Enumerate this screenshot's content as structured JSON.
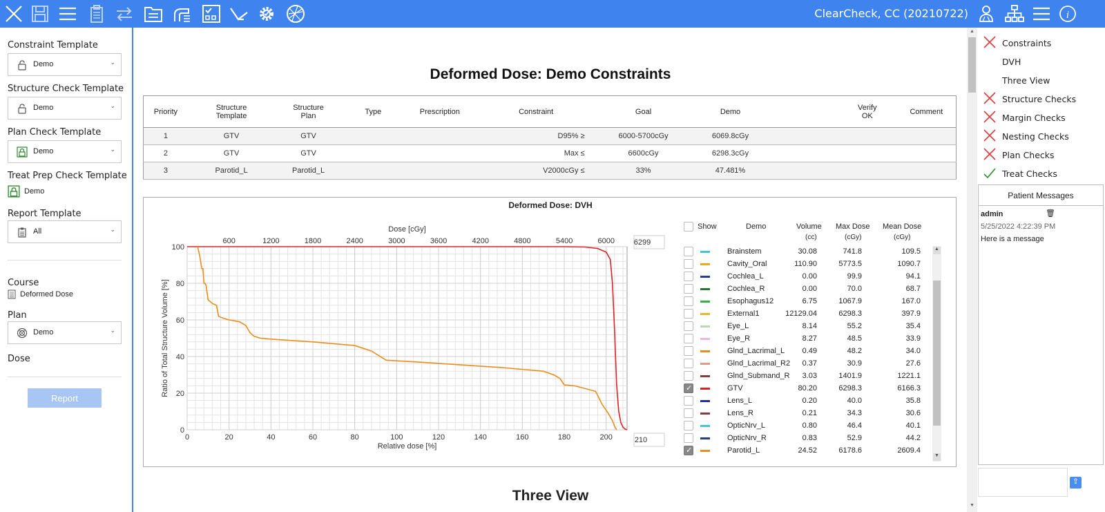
{
  "toolbar": {
    "title": "ClearCheck, CC (20210722)",
    "left_icons": [
      "close-icon",
      "save-icon",
      "menu-icon",
      "clipboard-icon",
      "swap-icon",
      "folder-icon",
      "pc-icon",
      "checklist-icon",
      "branch-icon",
      "gear-icon",
      "planner-icon"
    ],
    "right_icons": [
      "users-icon",
      "hierarchy-icon",
      "menu-icon",
      "info-icon"
    ],
    "accent": "#3f83ee"
  },
  "left_panel": {
    "constraint_template": {
      "label": "Constraint Template",
      "value": "Demo"
    },
    "structure_check_template": {
      "label": "Structure Check Template",
      "value": "Demo"
    },
    "plan_check_template": {
      "label": "Plan Check Template",
      "value": "Demo"
    },
    "treat_prep_check_template": {
      "label": "Treat Prep Check Template",
      "value": "Demo"
    },
    "report_template": {
      "label": "Report Template",
      "value": "All"
    },
    "course": {
      "label": "Course",
      "value": "Deformed Dose"
    },
    "plan": {
      "label": "Plan",
      "value": "Demo"
    },
    "dose": {
      "label": "Dose"
    },
    "report_button": "Report"
  },
  "main": {
    "title": "Deformed Dose:  Demo Constraints",
    "table": {
      "headers": [
        "Priority",
        "Structure\nTemplate",
        "Structure\nPlan",
        "Type",
        "Prescription",
        "Constraint",
        "Goal",
        "Demo",
        "",
        "Verify\nOK",
        "Comment"
      ],
      "rows": [
        {
          "priority": "1",
          "tmpl": "GTV",
          "plan": "GTV",
          "type": "",
          "rx": "",
          "constraint": "D95% ≥",
          "goal": "6000-5700cGy",
          "demo": "6069.8cGy",
          "status": "pass"
        },
        {
          "priority": "2",
          "tmpl": "GTV",
          "plan": "GTV",
          "type": "",
          "rx": "",
          "constraint": "Max ≤",
          "goal": "6600cGy",
          "demo": "6298.3cGy",
          "status": "pass"
        },
        {
          "priority": "3",
          "tmpl": "Parotid_L",
          "plan": "Parotid_L",
          "type": "",
          "rx": "",
          "constraint": "V2000cGy ≤",
          "goal": "33%",
          "demo": "47.481%",
          "status": "fail"
        }
      ]
    },
    "dvh_title": "Deformed Dose: DVH",
    "three_view_title": "Three View",
    "legend": {
      "show_label": "Show",
      "demo_label": "Demo",
      "volume_label": "Volume",
      "volume_unit": "(cc)",
      "max_label": "Max Dose",
      "max_unit": "(cGy)",
      "mean_label": "Mean Dose",
      "mean_unit": "(cGy)",
      "rows": [
        {
          "name": "Brainstem",
          "color": "#3fc4e8",
          "vol": "30.08",
          "max": "741.8",
          "mean": "109.5",
          "on": false
        },
        {
          "name": "Cavity_Oral",
          "color": "#f0a81a",
          "vol": "110.90",
          "max": "5773.5",
          "mean": "1090.7",
          "on": false
        },
        {
          "name": "Cochlea_L",
          "color": "#1f3f9a",
          "vol": "0.00",
          "max": "99.9",
          "mean": "94.1",
          "on": false
        },
        {
          "name": "Cochlea_R",
          "color": "#1d7a2e",
          "vol": "0.00",
          "max": "70.0",
          "mean": "68.7",
          "on": false
        },
        {
          "name": "Esophagus12",
          "color": "#33b43a",
          "vol": "6.75",
          "max": "1067.9",
          "mean": "167.0",
          "on": false
        },
        {
          "name": "External1",
          "color": "#f3b22a",
          "vol": "12129.04",
          "max": "6298.3",
          "mean": "397.9",
          "on": false
        },
        {
          "name": "Eye_L",
          "color": "#b9d8b5",
          "vol": "8.14",
          "max": "55.2",
          "mean": "35.4",
          "on": false
        },
        {
          "name": "Eye_R",
          "color": "#f0b4ec",
          "vol": "8.27",
          "max": "48.5",
          "mean": "33.9",
          "on": false
        },
        {
          "name": "Glnd_Lacrimal_L",
          "color": "#e88a1d",
          "vol": "0.49",
          "max": "48.2",
          "mean": "34.0",
          "on": false
        },
        {
          "name": "Glnd_Lacrimal_R2",
          "color": "#e49a8a",
          "vol": "0.37",
          "max": "30.9",
          "mean": "27.6",
          "on": false
        },
        {
          "name": "Glnd_Submand_R",
          "color": "#8b3a3a",
          "vol": "3.03",
          "max": "1401.9",
          "mean": "1221.1",
          "on": false
        },
        {
          "name": "GTV",
          "color": "#e02020",
          "vol": "80.20",
          "max": "6298.3",
          "mean": "6166.3",
          "on": true
        },
        {
          "name": "Lens_L",
          "color": "#1a2fa8",
          "vol": "0.20",
          "max": "40.0",
          "mean": "35.8",
          "on": false
        },
        {
          "name": "Lens_R",
          "color": "#8e3b3b",
          "vol": "0.21",
          "max": "34.3",
          "mean": "30.6",
          "on": false
        },
        {
          "name": "OpticNrv_L",
          "color": "#3fc4e8",
          "vol": "0.80",
          "max": "46.4",
          "mean": "40.1",
          "on": false
        },
        {
          "name": "OpticNrv_R",
          "color": "#243f8a",
          "vol": "0.83",
          "max": "52.9",
          "mean": "44.2",
          "on": false
        },
        {
          "name": "Parotid_L",
          "color": "#f08a1a",
          "vol": "24.52",
          "max": "6178.6",
          "mean": "2609.4",
          "on": true
        }
      ]
    }
  },
  "chart_data": {
    "type": "line",
    "title": "Deformed Dose: DVH",
    "xlabel": "Relative dose [%]",
    "x2label": "Dose [cGy]",
    "ylabel": "Ratio of Total Structure Volume [%]",
    "xlim": [
      0,
      210
    ],
    "ylim": [
      0,
      100
    ],
    "xticks": [
      0,
      20,
      40,
      60,
      80,
      100,
      120,
      140,
      160,
      180,
      200
    ],
    "x2ticks": [
      600,
      1200,
      1800,
      2400,
      3000,
      3600,
      4200,
      4800,
      5400,
      6000
    ],
    "x2lim": [
      0,
      6299
    ],
    "yticks": [
      0,
      20,
      40,
      60,
      80,
      100
    ],
    "x_max_box": "210",
    "x2_max_box": "6299",
    "grid": true,
    "series": [
      {
        "name": "GTV",
        "color": "#e02020",
        "x": [
          0,
          180,
          190,
          196,
          200,
          202,
          203,
          204,
          205,
          206,
          207,
          208,
          209,
          210
        ],
        "y": [
          100,
          100,
          99.8,
          99,
          97,
          93,
          80,
          55,
          25,
          10,
          4,
          1.5,
          0.4,
          0
        ]
      },
      {
        "name": "Parotid_L",
        "color": "#f08a1a",
        "x": [
          5,
          6,
          7,
          7.5,
          8,
          8.5,
          9,
          10,
          11,
          12,
          14,
          15,
          17,
          20,
          25,
          28,
          30,
          32,
          35,
          40,
          60,
          80,
          88,
          95,
          110,
          130,
          150,
          170,
          175,
          178,
          180,
          185,
          195,
          198,
          201,
          203,
          204,
          205
        ],
        "y": [
          100,
          95,
          88,
          88,
          80,
          80,
          79,
          71,
          70,
          69,
          68,
          62,
          61,
          60,
          59,
          57,
          53,
          51,
          50,
          49.5,
          48,
          46,
          43,
          38,
          37,
          35.5,
          34,
          32,
          30,
          28,
          24.5,
          24,
          21,
          14,
          9,
          5,
          2,
          0
        ]
      }
    ]
  },
  "right_panel": {
    "nav": [
      {
        "label": "Constraints",
        "status": "fail"
      },
      {
        "label": "DVH",
        "status": "none"
      },
      {
        "label": "Three View",
        "status": "none"
      },
      {
        "label": "Structure Checks",
        "status": "fail"
      },
      {
        "label": "Margin Checks",
        "status": "fail"
      },
      {
        "label": "Nesting Checks",
        "status": "fail"
      },
      {
        "label": "Plan Checks",
        "status": "fail"
      },
      {
        "label": "Treat Checks",
        "status": "pass"
      }
    ],
    "messages_title": "Patient Messages",
    "message": {
      "user": "admin",
      "time": "5/25/2022 4:22:39 PM",
      "text": "Here is a message"
    }
  }
}
